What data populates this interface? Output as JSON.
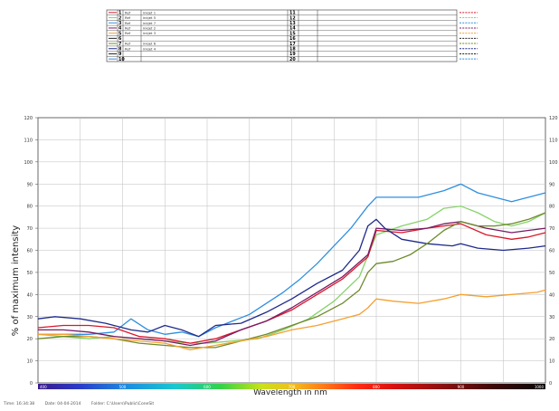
{
  "legend": {
    "rows": [
      {
        "num": "1",
        "color": "#d9182a",
        "ref": "Ref",
        "name": "inkjet 1",
        "num2": "11",
        "color2": "#d9182a"
      },
      {
        "num": "2",
        "color": "#86d36a",
        "ref": "Ref",
        "name": "inkjet 5",
        "num2": "12",
        "color2": "#86d36a"
      },
      {
        "num": "3",
        "color": "#2f8fe0",
        "ref": "Ref",
        "name": "inkjet 7",
        "num2": "13",
        "color2": "#2f8fe0"
      },
      {
        "num": "4",
        "color": "#7a1a66",
        "ref": "Ref",
        "name": "inkjet 2",
        "num2": "14",
        "color2": "#7a1a66"
      },
      {
        "num": "5",
        "color": "#f5a030",
        "ref": "Ref",
        "name": "inkjet 3",
        "num2": "15",
        "color2": "#f5a030"
      },
      {
        "num": "6",
        "color": "#222222",
        "ref": "",
        "name": "",
        "num2": "16",
        "color2": "#222222"
      },
      {
        "num": "7",
        "color": "#6d8a2a",
        "ref": "Ref",
        "name": "inkjet 6",
        "num2": "17",
        "color2": "#6d8a2a"
      },
      {
        "num": "8",
        "color": "#1f2a8a",
        "ref": "Ref",
        "name": "inkjet 4",
        "num2": "18",
        "color2": "#1f2a8a"
      },
      {
        "num": "9",
        "color": "#222222",
        "ref": "",
        "name": "",
        "num2": "19",
        "color2": "#222222"
      },
      {
        "num": "10",
        "color": "#2f8fe0",
        "ref": "",
        "name": "",
        "num2": "20",
        "color2": "#2f8fe0"
      }
    ]
  },
  "chart_data": {
    "type": "line",
    "xlabel": "Wavelength in nm",
    "ylabel": "% of maximum intensity",
    "xlim": [
      400,
      1000
    ],
    "ylim": [
      0,
      120
    ],
    "y_ticks": [
      0,
      10,
      20,
      30,
      40,
      50,
      60,
      70,
      80,
      90,
      100,
      110,
      120
    ],
    "x_ticks": [
      400,
      500,
      600,
      700,
      800,
      900,
      1000
    ],
    "grid": true,
    "series": [
      {
        "name": "inkjet 7",
        "color": "#2f8fe0",
        "x": [
          400,
          430,
          460,
          490,
          510,
          530,
          550,
          570,
          590,
          610,
          630,
          650,
          670,
          690,
          710,
          730,
          750,
          770,
          790,
          800,
          820,
          850,
          880,
          900,
          920,
          940,
          960,
          980,
          1000
        ],
        "y": [
          22,
          22,
          22,
          23,
          29,
          24,
          22,
          23,
          21,
          25,
          28,
          31,
          36,
          41,
          47,
          54,
          62,
          70,
          80,
          84,
          84,
          84,
          87,
          90,
          86,
          84,
          82,
          84,
          86
        ]
      },
      {
        "name": "inkjet 5",
        "color": "#86d36a",
        "x": [
          400,
          430,
          460,
          490,
          520,
          550,
          580,
          600,
          630,
          660,
          690,
          720,
          750,
          780,
          800,
          830,
          860,
          880,
          900,
          920,
          940,
          960,
          980,
          1000
        ],
        "y": [
          22,
          21,
          20,
          21,
          20,
          19,
          18,
          18,
          19,
          20,
          24,
          29,
          37,
          48,
          67,
          71,
          74,
          79,
          80,
          77,
          73,
          71,
          73,
          77
        ]
      },
      {
        "name": "inkjet 1",
        "color": "#d9182a",
        "x": [
          400,
          430,
          460,
          490,
          520,
          550,
          580,
          610,
          640,
          670,
          700,
          730,
          760,
          790,
          800,
          830,
          860,
          880,
          900,
          930,
          960,
          980,
          1000
        ],
        "y": [
          25,
          26,
          26,
          25,
          21,
          20,
          18,
          20,
          24,
          28,
          33,
          40,
          47,
          57,
          69,
          68,
          70,
          71,
          72,
          67,
          65,
          66,
          68
        ]
      },
      {
        "name": "inkjet 2",
        "color": "#7a1a66",
        "x": [
          400,
          430,
          460,
          490,
          520,
          550,
          580,
          610,
          640,
          670,
          700,
          730,
          760,
          790,
          800,
          830,
          860,
          880,
          900,
          930,
          960,
          980,
          1000
        ],
        "y": [
          24,
          24,
          23,
          21,
          20,
          19,
          17,
          19,
          24,
          28,
          34,
          41,
          48,
          58,
          70,
          69,
          70,
          72,
          73,
          70,
          68,
          69,
          70
        ]
      },
      {
        "name": "inkjet 4",
        "color": "#1f2a8a",
        "x": [
          400,
          420,
          450,
          480,
          510,
          530,
          550,
          570,
          590,
          610,
          640,
          670,
          700,
          730,
          760,
          780,
          790,
          800,
          810,
          830,
          860,
          890,
          900,
          920,
          950,
          980,
          1000
        ],
        "y": [
          29,
          30,
          29,
          27,
          24,
          23,
          26,
          24,
          21,
          26,
          27,
          32,
          38,
          45,
          51,
          60,
          71,
          74,
          70,
          65,
          63,
          62,
          63,
          61,
          60,
          61,
          62
        ]
      },
      {
        "name": "inkjet 6",
        "color": "#6d8a2a",
        "x": [
          400,
          430,
          460,
          490,
          520,
          550,
          580,
          610,
          640,
          670,
          700,
          730,
          760,
          780,
          790,
          800,
          820,
          840,
          860,
          880,
          900,
          920,
          940,
          960,
          980,
          1000
        ],
        "y": [
          20,
          21,
          21,
          20,
          18,
          17,
          16,
          16,
          19,
          22,
          26,
          30,
          36,
          42,
          50,
          54,
          55,
          58,
          63,
          69,
          73,
          71,
          71,
          72,
          74,
          77
        ]
      },
      {
        "name": "inkjet 3",
        "color": "#f5a030",
        "x": [
          400,
          430,
          460,
          490,
          520,
          550,
          580,
          610,
          640,
          670,
          700,
          730,
          760,
          780,
          790,
          800,
          820,
          850,
          880,
          900,
          930,
          960,
          990,
          1000
        ],
        "y": [
          22,
          22,
          21,
          20,
          19,
          18,
          15,
          17,
          19,
          21,
          24,
          26,
          29,
          31,
          34,
          38,
          37,
          36,
          38,
          40,
          39,
          40,
          41,
          42
        ]
      }
    ]
  },
  "footer": {
    "time": "Time: 16:34:38",
    "date": "Date: 04-04-2014",
    "folder": "Folder: C:\\Users\\Public\\ConeSit"
  }
}
